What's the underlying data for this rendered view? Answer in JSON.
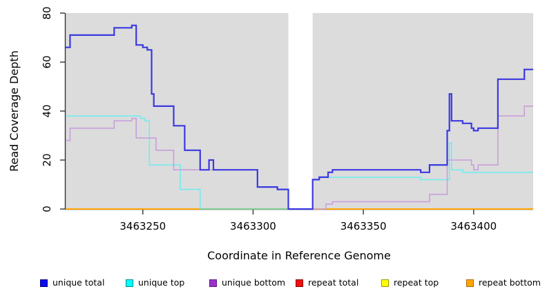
{
  "chart_data": {
    "type": "line",
    "subtype": "step",
    "title": "",
    "xlabel": "Coordinate in Reference Genome",
    "ylabel": "Read Coverage Depth",
    "xlim": [
      3463215,
      3463427
    ],
    "ylim": [
      0,
      80
    ],
    "x_ticks": [
      3463250,
      3463300,
      3463350,
      3463400
    ],
    "y_ticks": [
      0,
      20,
      40,
      60,
      80
    ],
    "grid": false,
    "legend_position": "bottom",
    "plot_bg_color": "#dcdcdc",
    "axis_color": "#333333",
    "coverage_gap": {
      "from": 3463316,
      "to": 3463327
    },
    "zero_overlap_segment": {
      "from": 3463276,
      "to": 3463316,
      "value": 0,
      "color": "#7ccb93"
    },
    "series": [
      {
        "name": "unique total",
        "line_color": "#3a38e0",
        "legend_fill": "#0b0bee",
        "legend_border": "#00008b",
        "line_width": 2.2,
        "steps": [
          [
            3463215,
            66
          ],
          [
            3463217,
            71
          ],
          [
            3463237,
            74
          ],
          [
            3463245,
            75
          ],
          [
            3463247,
            67
          ],
          [
            3463250,
            66
          ],
          [
            3463252,
            65
          ],
          [
            3463254,
            47
          ],
          [
            3463255,
            42
          ],
          [
            3463264,
            34
          ],
          [
            3463269,
            24
          ],
          [
            3463276,
            16
          ],
          [
            3463280,
            20
          ],
          [
            3463282,
            16
          ],
          [
            3463302,
            9
          ],
          [
            3463311,
            8
          ],
          [
            3463316,
            0
          ],
          [
            3463327,
            12
          ],
          [
            3463330,
            13
          ],
          [
            3463334,
            15
          ],
          [
            3463336,
            16
          ],
          [
            3463376,
            15
          ],
          [
            3463380,
            18
          ],
          [
            3463388,
            32
          ],
          [
            3463389,
            47
          ],
          [
            3463390,
            36
          ],
          [
            3463395,
            35
          ],
          [
            3463399,
            33
          ],
          [
            3463400,
            32
          ],
          [
            3463402,
            33
          ],
          [
            3463411,
            53
          ],
          [
            3463423,
            57
          ]
        ]
      },
      {
        "name": "unique top",
        "line_color": "#74ebee",
        "legend_fill": "#00ffff",
        "legend_border": "#008b8b",
        "line_width": 1.6,
        "steps": [
          [
            3463215,
            38
          ],
          [
            3463249,
            37
          ],
          [
            3463251,
            36
          ],
          [
            3463253,
            18
          ],
          [
            3463267,
            8
          ],
          [
            3463276,
            0
          ],
          [
            3463327,
            12
          ],
          [
            3463330,
            13
          ],
          [
            3463376,
            12
          ],
          [
            3463389,
            27
          ],
          [
            3463390,
            16
          ],
          [
            3463395,
            15
          ]
        ]
      },
      {
        "name": "unique bottom",
        "line_color": "#c79fdb",
        "legend_fill": "#9932cc",
        "legend_border": "#5c1a82",
        "line_width": 1.6,
        "steps": [
          [
            3463215,
            28
          ],
          [
            3463217,
            33
          ],
          [
            3463237,
            36
          ],
          [
            3463245,
            37
          ],
          [
            3463247,
            29
          ],
          [
            3463256,
            24
          ],
          [
            3463264,
            16
          ],
          [
            3463302,
            9
          ],
          [
            3463311,
            8
          ],
          [
            3463316,
            0
          ],
          [
            3463333,
            2
          ],
          [
            3463336,
            3
          ],
          [
            3463380,
            6
          ],
          [
            3463388,
            20
          ],
          [
            3463399,
            18
          ],
          [
            3463400,
            16
          ],
          [
            3463402,
            18
          ],
          [
            3463411,
            38
          ],
          [
            3463423,
            42
          ]
        ]
      },
      {
        "name": "repeat total",
        "line_color": "#e03030",
        "legend_fill": "#ee1111",
        "legend_border": "#8b0000",
        "line_width": 1.6,
        "steps": [
          [
            3463215,
            0
          ]
        ]
      },
      {
        "name": "repeat top",
        "line_color": "#f5f540",
        "legend_fill": "#ffff00",
        "legend_border": "#9a9a00",
        "line_width": 1.6,
        "steps": [
          [
            3463215,
            0
          ]
        ]
      },
      {
        "name": "repeat bottom",
        "line_color": "#ffa500",
        "legend_fill": "#ffa500",
        "legend_border": "#a86a00",
        "line_width": 2,
        "steps": [
          [
            3463215,
            0
          ]
        ]
      }
    ]
  }
}
